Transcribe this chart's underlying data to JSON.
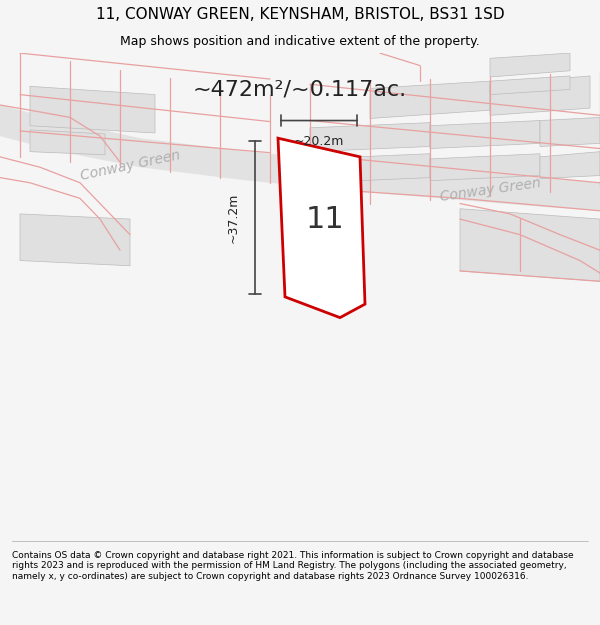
{
  "title": "11, CONWAY GREEN, KEYNSHAM, BRISTOL, BS31 1SD",
  "subtitle": "Map shows position and indicative extent of the property.",
  "area_label": "~472m²/~0.117ac.",
  "width_label": "~20.2m",
  "height_label": "~37.2m",
  "number_label": "11",
  "road_label1": "Conway Green",
  "road_label2": "Conway Green",
  "footer": "Contains OS data © Crown copyright and database right 2021. This information is subject to Crown copyright and database rights 2023 and is reproduced with the permission of HM Land Registry. The polygons (including the associated geometry, namely x, y co-ordinates) are subject to Crown copyright and database rights 2023 Ordnance Survey 100026316.",
  "bg_color": "#f5f5f5",
  "map_bg": "#ffffff",
  "plot_color": "#cc0000",
  "road_fill": "#e2e2e2",
  "block_fill": "#e0e0e0",
  "block_edge": "#bbbbbb",
  "faint_line_color": "#e8a0a0",
  "dim_line_color": "#444444",
  "road_text_color": "#b0b0b0",
  "title_fontsize": 11,
  "subtitle_fontsize": 9,
  "area_fontsize": 16,
  "number_fontsize": 22,
  "dim_fontsize": 9,
  "road_fontsize": 10,
  "footer_fontsize": 6.5
}
